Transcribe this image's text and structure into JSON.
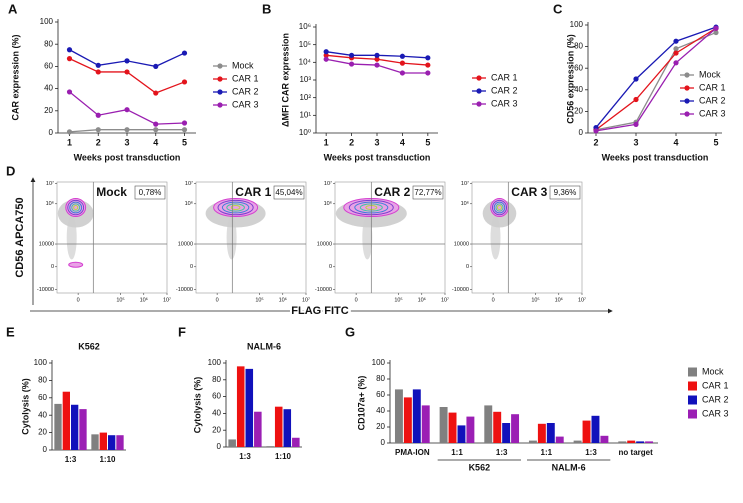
{
  "chart_data": [
    {
      "panel": "A",
      "type": "line",
      "ylabel": "CAR expression (%)",
      "xlabel": "Weeks post transduction",
      "x": [
        1,
        2,
        3,
        4,
        5
      ],
      "xlim": [
        0.6,
        5.4
      ],
      "xticks": [
        1,
        2,
        3,
        4,
        5
      ],
      "ylim": [
        0,
        100
      ],
      "yticks": [
        0,
        20,
        40,
        60,
        80,
        100
      ],
      "series": [
        {
          "name": "Mock",
          "color": "#8c8c8c",
          "values": [
            1,
            3,
            3,
            3,
            3
          ]
        },
        {
          "name": "CAR 1",
          "color": "#e3141c",
          "values": [
            67,
            55,
            55,
            36,
            46
          ]
        },
        {
          "name": "CAR 2",
          "color": "#1a1ab4",
          "values": [
            75,
            61,
            65,
            60,
            72
          ]
        },
        {
          "name": "CAR 3",
          "color": "#9a1fb0",
          "values": [
            37,
            16,
            21,
            8,
            9
          ]
        }
      ]
    },
    {
      "panel": "B",
      "type": "line",
      "ylabel": "ΔMFI CAR expression",
      "xlabel": "Weeks post transduction",
      "log_y": true,
      "x": [
        1,
        2,
        3,
        4,
        5
      ],
      "xlim": [
        0.6,
        5.4
      ],
      "xticks": [
        1,
        2,
        3,
        4,
        5
      ],
      "ylim": [
        1,
        1000000
      ],
      "yticks": [
        {
          "value": 1,
          "label": "10⁰"
        },
        {
          "value": 10,
          "label": "10¹"
        },
        {
          "value": 100,
          "label": "10²"
        },
        {
          "value": 1000,
          "label": "10³"
        },
        {
          "value": 10000,
          "label": "10⁴"
        },
        {
          "value": 100000,
          "label": "10⁵"
        },
        {
          "value": 1000000,
          "label": "10⁶"
        }
      ],
      "series": [
        {
          "name": "CAR 1",
          "color": "#e3141c",
          "values": [
            25000,
            18000,
            15000,
            9000,
            7000
          ]
        },
        {
          "name": "CAR 2",
          "color": "#1a1ab4",
          "values": [
            40000,
            25000,
            25000,
            22000,
            18000
          ]
        },
        {
          "name": "CAR 3",
          "color": "#9a1fb0",
          "values": [
            15000,
            8000,
            7000,
            2500,
            2500
          ]
        }
      ]
    },
    {
      "panel": "C",
      "type": "line",
      "ylabel": "CD56 expression (%)",
      "xlabel": "Weeks post transduction",
      "x": [
        2,
        3,
        4,
        5
      ],
      "xlim": [
        1.8,
        5.15
      ],
      "xticks": [
        2,
        3,
        4,
        5
      ],
      "ylim": [
        0,
        100
      ],
      "yticks": [
        0,
        20,
        40,
        60,
        80,
        100
      ],
      "series": [
        {
          "name": "Mock",
          "color": "#8c8c8c",
          "values": [
            3,
            10,
            78,
            93
          ]
        },
        {
          "name": "CAR 1",
          "color": "#e3141c",
          "values": [
            3,
            31,
            74,
            97
          ]
        },
        {
          "name": "CAR 2",
          "color": "#1a1ab4",
          "values": [
            5,
            50,
            85,
            98
          ]
        },
        {
          "name": "CAR 3",
          "color": "#9a1fb0",
          "values": [
            2,
            8,
            65,
            97
          ]
        }
      ]
    },
    {
      "panel": "D",
      "type": "flow",
      "ylabel": "CD56 APCA750",
      "xlabel": "FLAG FITC",
      "categories": [
        "Mock",
        "CAR 1",
        "CAR 2",
        "CAR 3"
      ],
      "values": [
        0.78,
        45.04,
        72.77,
        9.36
      ],
      "value_labels": [
        "0,78%",
        "45,04%",
        "72,77%",
        "9,36%"
      ],
      "xlim": [
        -12000,
        10000000
      ],
      "xticks": [
        0,
        {
          "value": 100000,
          "label": "10⁵"
        },
        {
          "value": 1000000,
          "label": "10⁶"
        },
        {
          "value": 10000000,
          "label": "10⁷"
        }
      ],
      "ylim": [
        -15000,
        12000000
      ],
      "yticks": [
        -10000,
        0,
        10000,
        {
          "value": 1000000,
          "label": "10⁶"
        },
        {
          "value": 10000000,
          "label": "10⁷"
        }
      ]
    },
    {
      "panel": "E",
      "type": "bar",
      "title": "K562",
      "ylabel": "Cytolysis (%)",
      "categories": [
        "1:3",
        "1:10"
      ],
      "ylim": [
        0,
        100
      ],
      "yticks": [
        0,
        20,
        40,
        60,
        80,
        100
      ],
      "series": [
        {
          "name": "Mock",
          "color": "#808080",
          "values": [
            53,
            18
          ]
        },
        {
          "name": "CAR 1",
          "color": "#ee1111",
          "values": [
            67,
            20
          ]
        },
        {
          "name": "CAR 2",
          "color": "#1111bb",
          "values": [
            52,
            17
          ]
        },
        {
          "name": "CAR 3",
          "color": "#9b1fb4",
          "values": [
            47,
            17
          ]
        }
      ]
    },
    {
      "panel": "F",
      "type": "bar",
      "title": "NALM-6",
      "ylabel": "Cytolysis (%)",
      "categories": [
        "1:3",
        "1:10"
      ],
      "ylim": [
        0,
        100
      ],
      "yticks": [
        0,
        20,
        40,
        60,
        80,
        100
      ],
      "series": [
        {
          "name": "Mock",
          "color": "#808080",
          "values": [
            9,
            1
          ]
        },
        {
          "name": "CAR 1",
          "color": "#ee1111",
          "values": [
            96,
            48
          ]
        },
        {
          "name": "CAR 2",
          "color": "#1111bb",
          "values": [
            93,
            45
          ]
        },
        {
          "name": "CAR 3",
          "color": "#9b1fb4",
          "values": [
            42,
            11
          ]
        }
      ]
    },
    {
      "panel": "G",
      "type": "bar",
      "ylabel": "CD107a+ (%)",
      "legend": "right",
      "categories": [
        "PMA-ION",
        "1:1",
        "1:3",
        "1:1",
        "1:3",
        "no target"
      ],
      "category_groups": [
        null,
        "K562",
        "K562",
        "NALM-6",
        "NALM-6",
        null
      ],
      "ylim": [
        0,
        100
      ],
      "yticks": [
        0,
        20,
        40,
        60,
        80,
        100
      ],
      "series": [
        {
          "name": "Mock",
          "color": "#808080",
          "values": [
            67,
            45,
            47,
            3,
            3,
            2
          ]
        },
        {
          "name": "CAR 1",
          "color": "#ee1111",
          "values": [
            57,
            38,
            39,
            24,
            28,
            3
          ]
        },
        {
          "name": "CAR 2",
          "color": "#1111bb",
          "values": [
            67,
            22,
            25,
            25,
            34,
            2
          ]
        },
        {
          "name": "CAR 3",
          "color": "#9b1fb4",
          "values": [
            47,
            33,
            36,
            8,
            9,
            2
          ]
        }
      ]
    }
  ]
}
